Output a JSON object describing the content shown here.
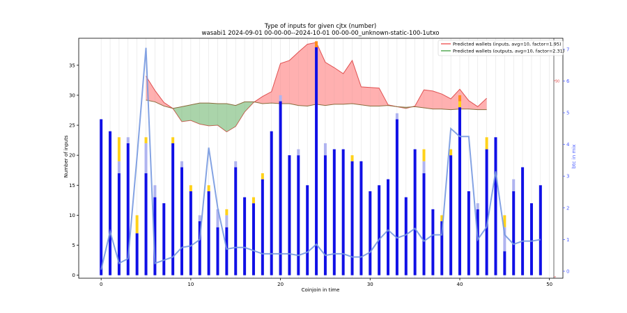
{
  "chart_data": {
    "type": "bar",
    "title": "Type of inputs for given cjtx (number)",
    "subtitle": "wasabi1 2024-09-01 00-00-00--2024-10-01 00-00-00_unknown-static-100-1utxo",
    "xlabel": "Coinjoin in time",
    "ylabel": "Number of inputs",
    "ylabel_right": "btc in mix",
    "xlim": [
      -2.5,
      51.5
    ],
    "ylim": [
      -0.5,
      39.5
    ],
    "y2lim": [
      -0.22,
      7.35
    ],
    "xticks": [
      0,
      10,
      20,
      30,
      40,
      50
    ],
    "yticks": [
      0,
      5,
      10,
      15,
      20,
      25,
      30,
      35
    ],
    "y2ticks": [
      0,
      1,
      2,
      3,
      4,
      5,
      6,
      7
    ],
    "right_inner_tick": "30",
    "x": [
      0,
      1,
      2,
      3,
      4,
      5,
      6,
      7,
      8,
      9,
      10,
      11,
      12,
      13,
      14,
      15,
      16,
      17,
      18,
      19,
      20,
      21,
      22,
      23,
      24,
      25,
      26,
      27,
      28,
      29,
      30,
      31,
      32,
      33,
      34,
      35,
      36,
      37,
      38,
      39,
      40,
      41,
      42,
      43,
      44,
      45,
      46,
      47,
      48,
      49
    ],
    "series": [
      {
        "name": "",
        "color": "#1010e6",
        "values": [
          26,
          24,
          17,
          22,
          7,
          17,
          13,
          12,
          22,
          18,
          14,
          9,
          14,
          8,
          8,
          18,
          13,
          12,
          16,
          24,
          29,
          20,
          20,
          15,
          38,
          20,
          21,
          21,
          19,
          19,
          14,
          15,
          16,
          26,
          13,
          21,
          17,
          11,
          9,
          20,
          28,
          14,
          11,
          21,
          23,
          4,
          14,
          18,
          12,
          15
        ]
      },
      {
        "name": "",
        "color": "#b0b4f0",
        "values": [
          0,
          0,
          2,
          1,
          0,
          5,
          2,
          0,
          0,
          1,
          0,
          1,
          0,
          3,
          2,
          1,
          0,
          0,
          0,
          0,
          1,
          0,
          1,
          0,
          0,
          2,
          0,
          0,
          0,
          0,
          0,
          0,
          0,
          1,
          0,
          0,
          2,
          0,
          0,
          0,
          0,
          0,
          1,
          0,
          0,
          4,
          2,
          0,
          0,
          0
        ]
      },
      {
        "name": "",
        "color": "#ffd21a",
        "values": [
          0,
          0,
          4,
          0,
          3,
          1,
          0,
          0,
          1,
          0,
          1,
          0,
          1,
          0,
          1,
          0,
          0,
          1,
          1,
          0,
          0,
          0,
          0,
          0,
          0,
          0,
          0,
          0,
          1,
          0,
          0,
          0,
          0,
          0,
          0,
          0,
          2,
          0,
          1,
          1,
          1,
          0,
          0,
          2,
          0,
          2,
          0,
          0,
          0,
          0
        ]
      },
      {
        "name": "",
        "color": "#ff8c1a",
        "values": [
          0,
          0,
          0,
          0,
          0,
          0,
          0,
          0,
          0,
          0,
          0,
          0,
          0,
          0,
          0,
          0,
          0,
          0,
          0,
          0,
          0,
          0,
          0,
          0,
          1,
          0,
          0,
          0,
          0,
          0,
          0,
          0,
          0,
          0,
          0,
          0,
          0,
          0,
          0,
          0,
          1,
          0,
          0,
          0,
          0,
          0,
          0,
          0,
          0,
          0
        ]
      },
      {
        "name": "",
        "color": "#7799e0",
        "axis": "right",
        "x": [
          0,
          1,
          2,
          3,
          4,
          5,
          6,
          7,
          8,
          9,
          10,
          11,
          12,
          13,
          14,
          15,
          16,
          17,
          18,
          19,
          20,
          21,
          22,
          23,
          24,
          25,
          26,
          27,
          28,
          29,
          30,
          31,
          32,
          33,
          34,
          35,
          36,
          37,
          38,
          39,
          40,
          41,
          42,
          43,
          44,
          45,
          46,
          47,
          48,
          49
        ],
        "values": [
          0.05,
          1.25,
          0.25,
          0.4,
          3.6,
          7.05,
          0.25,
          0.35,
          0.45,
          0.75,
          0.8,
          1.0,
          3.9,
          2.0,
          0.7,
          0.75,
          0.75,
          0.65,
          0.55,
          0.55,
          0.55,
          0.55,
          0.5,
          0.6,
          0.85,
          0.5,
          0.55,
          0.55,
          0.45,
          0.45,
          0.6,
          1.0,
          1.3,
          1.05,
          1.15,
          1.35,
          0.95,
          1.15,
          1.15,
          4.5,
          4.25,
          4.25,
          1.0,
          1.4,
          3.15,
          1.15,
          0.85,
          0.95,
          0.95,
          1.0
        ]
      }
    ],
    "area_inputs": {
      "name": "Predicted wallets (inputs, avg=10, factor=1.95)",
      "color": "#f06262",
      "x": [
        5,
        6,
        7,
        8,
        9,
        10,
        11,
        12,
        13,
        14,
        15,
        16,
        17,
        18,
        19,
        20,
        21,
        22,
        23,
        24,
        25,
        26,
        27,
        28,
        29,
        30,
        31,
        32,
        33,
        34,
        35,
        36,
        37,
        38,
        39,
        40,
        41,
        42,
        43
      ],
      "values": [
        33.2,
        30.8,
        28.8,
        27.8,
        25.6,
        25.8,
        25.2,
        24.9,
        25.0,
        23.9,
        24.8,
        27.2,
        28.8,
        29.8,
        30.6,
        35.3,
        35.8,
        37.2,
        38.5,
        38.8,
        35.5,
        34.6,
        33.6,
        35.8,
        31.4,
        31.3,
        31.2,
        28.4,
        28.1,
        27.8,
        28.2,
        30.9,
        30.7,
        30.2,
        29.4,
        31.0,
        29.1,
        28.1,
        29.5
      ]
    },
    "area_outputs": {
      "name": "Predicted wallets (outputs, avg=10, factor=2.31)",
      "color": "#55aa55",
      "x": [
        5,
        6,
        7,
        8,
        9,
        10,
        11,
        12,
        13,
        14,
        15,
        16,
        17,
        18,
        19,
        20,
        21,
        22,
        23,
        24,
        25,
        26,
        27,
        28,
        29,
        30,
        31,
        32,
        33,
        34,
        35,
        36,
        37,
        38,
        39,
        40,
        41,
        42,
        43
      ],
      "values": [
        29.2,
        28.9,
        28.2,
        27.8,
        28.1,
        28.4,
        28.7,
        28.7,
        28.6,
        28.6,
        28.3,
        28.9,
        28.9,
        28.6,
        28.7,
        28.6,
        28.6,
        28.3,
        28.2,
        28.5,
        28.3,
        28.5,
        28.5,
        28.6,
        28.4,
        28.2,
        28.2,
        28.3,
        28.1,
        28.0,
        28.1,
        27.9,
        27.7,
        27.7,
        27.6,
        27.7,
        27.7,
        27.6,
        27.6
      ]
    },
    "grid": "x-minor",
    "legend_position": "top-right"
  }
}
